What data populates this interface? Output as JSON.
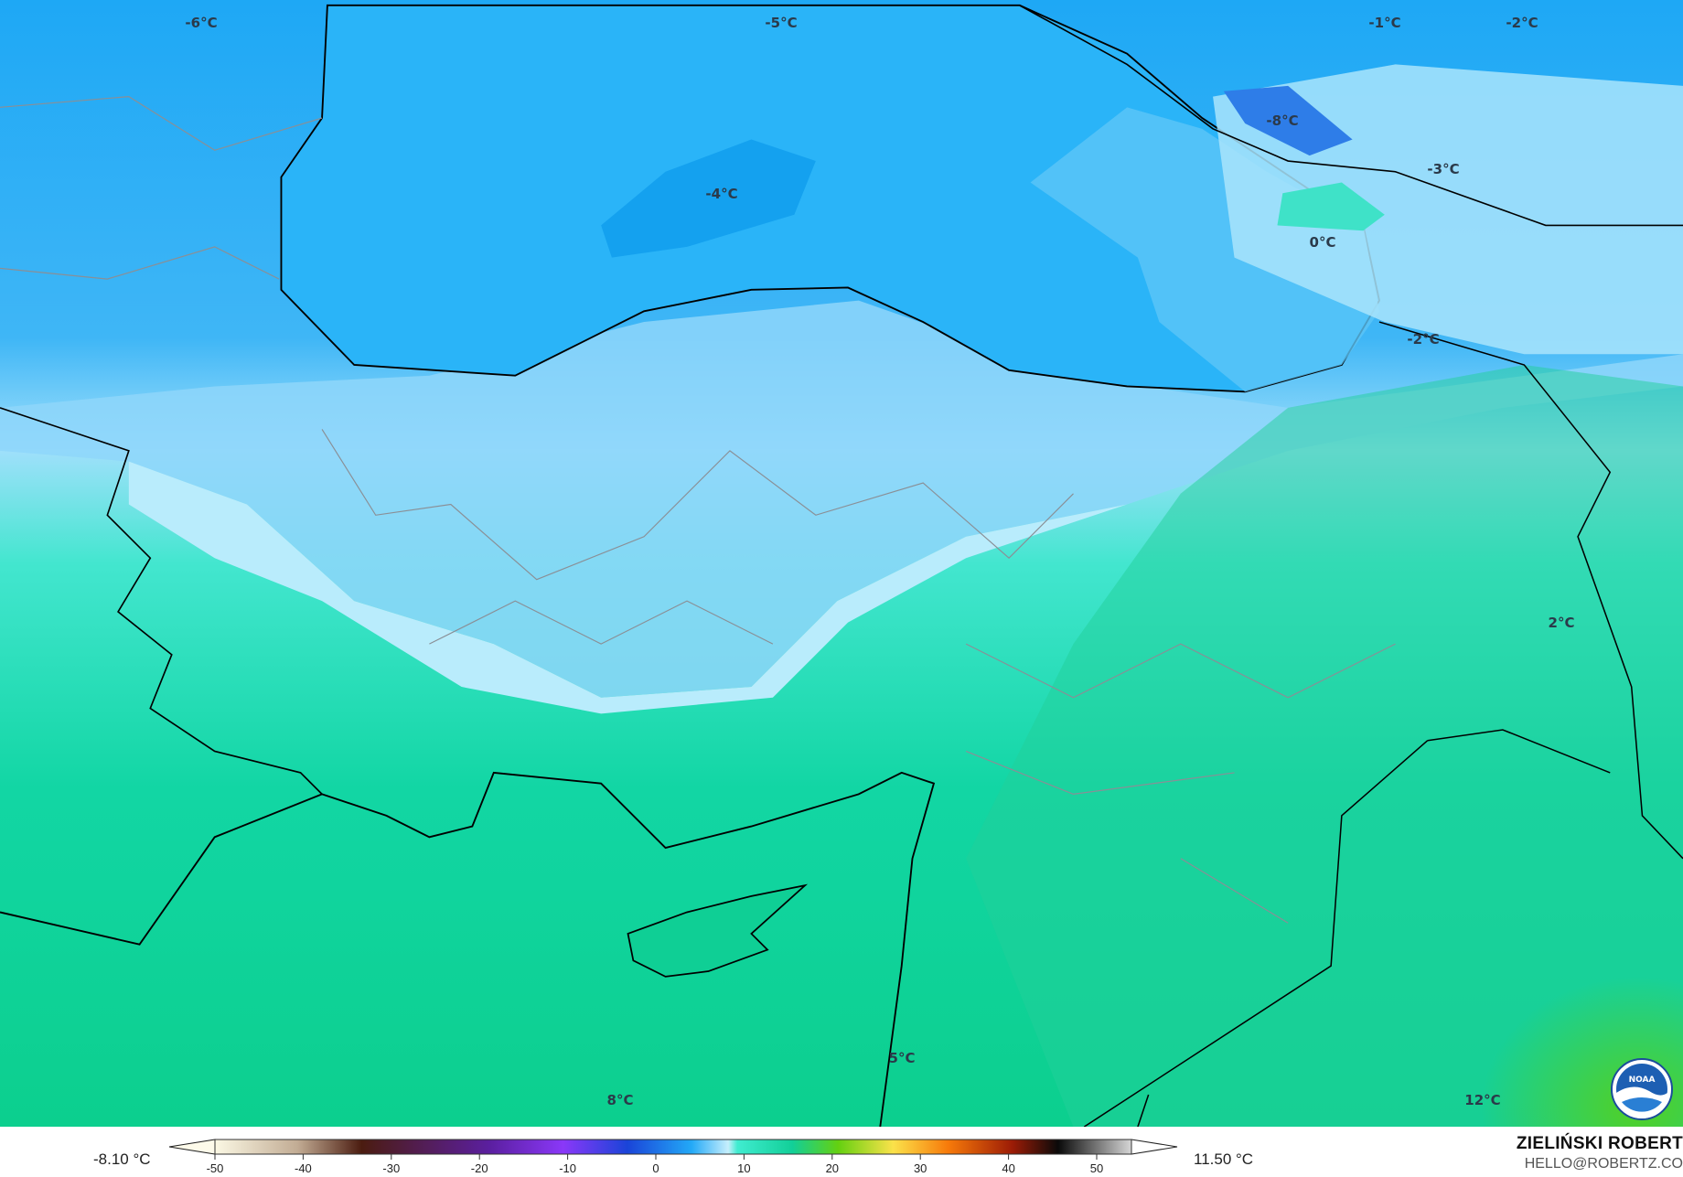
{
  "map": {
    "variable_unit": "°C",
    "labels": [
      {
        "text": "-6°C",
        "lon_lat_hint": "Balkans north"
      },
      {
        "text": "-5°C"
      },
      {
        "text": "-1°C"
      },
      {
        "text": "-2°C"
      },
      {
        "text": "-8°C"
      },
      {
        "text": "-4°C"
      },
      {
        "text": "-3°C"
      },
      {
        "text": "0°C"
      },
      {
        "text": "-2°C"
      },
      {
        "text": "2°C"
      },
      {
        "text": "5°C"
      },
      {
        "text": "8°C"
      },
      {
        "text": "12°C"
      }
    ],
    "logo": "NOAA",
    "colors": {
      "cold": "#1aa6f4",
      "cool": "#8fd9fb",
      "near_zero": "#b8ecfc",
      "mild": "#3de8cc",
      "warm": "#10d29c",
      "warmer": "#4fd02b"
    }
  },
  "legend": {
    "min_value": "-8.10 °C",
    "max_value": "11.50 °C",
    "ticks": [
      "-50",
      "-40",
      "-30",
      "-20",
      "-10",
      "0",
      "10",
      "20",
      "30",
      "40",
      "50"
    ]
  },
  "credit": {
    "author": "ZIELIŃSKI ROBERT",
    "email": "HELLO@ROBERTZ.CO"
  }
}
